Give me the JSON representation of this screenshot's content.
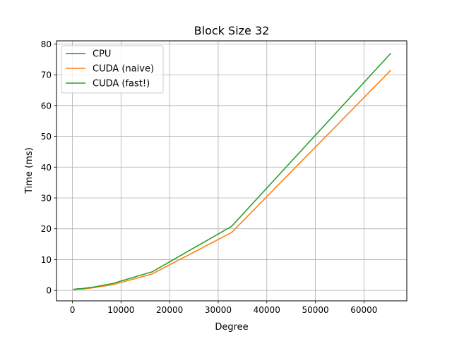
{
  "chart_data": {
    "type": "line",
    "title": "Block Size 32",
    "xlabel": "Degree",
    "ylabel": "Time (ms)",
    "xlim": [
      -3277,
      68813
    ],
    "ylim": [
      -3.4,
      81
    ],
    "xticks": [
      0,
      10000,
      20000,
      30000,
      40000,
      50000,
      60000
    ],
    "yticks": [
      0,
      10,
      20,
      30,
      40,
      50,
      60,
      70,
      80
    ],
    "grid": true,
    "legend_position": "upper-left",
    "series": [
      {
        "name": "CPU",
        "color": "#1f77b4",
        "x": [],
        "y": []
      },
      {
        "name": "CUDA (naive)",
        "color": "#ff7f0e",
        "x": [
          128,
          256,
          512,
          1024,
          2048,
          4096,
          8192,
          16384,
          32768,
          65536
        ],
        "y": [
          0.2,
          0.25,
          0.3,
          0.35,
          0.45,
          0.8,
          1.8,
          5.3,
          18.8,
          71.5
        ]
      },
      {
        "name": "CUDA (fast!)",
        "color": "#2ca02c",
        "x": [
          128,
          256,
          512,
          1024,
          2048,
          4096,
          8192,
          16384,
          32768,
          65536
        ],
        "y": [
          0.3,
          0.35,
          0.4,
          0.5,
          0.6,
          1.0,
          2.2,
          6.0,
          20.8,
          77.0
        ]
      }
    ]
  }
}
